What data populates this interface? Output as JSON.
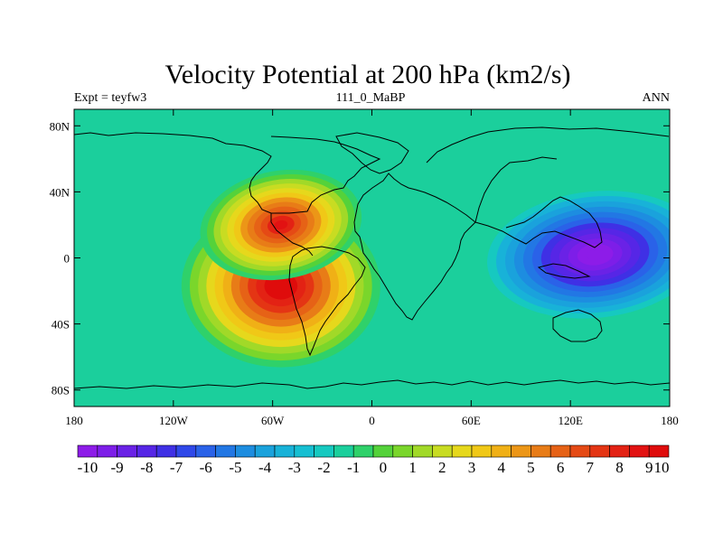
{
  "chart_data": {
    "type": "heatmap",
    "title": "Velocity Potential at 200 hPa (km2/s)",
    "left_string": "Expt = teyfw3",
    "center_string": "111_0_MaBP",
    "right_string": "ANN",
    "x_ticks": [
      "180",
      "120W",
      "60W",
      "0",
      "60E",
      "120E",
      "180"
    ],
    "y_ticks": [
      "80N",
      "40N",
      "0",
      "40S",
      "80S"
    ],
    "x_tick_lons": [
      -180,
      -120,
      -60,
      0,
      60,
      120,
      180
    ],
    "y_tick_lats": [
      80,
      40,
      0,
      -40,
      -80
    ],
    "xlim": [
      -180,
      180
    ],
    "ylim": [
      -90,
      90
    ],
    "colorbar_labels": [
      "-10",
      "-9",
      "-8",
      "-7",
      "-6",
      "-5",
      "-4",
      "-3",
      "-2",
      "-1",
      "0",
      "1",
      "2",
      "3",
      "4",
      "5",
      "6",
      "7",
      "8",
      "9",
      "10"
    ],
    "colorbar_levels": [
      -10,
      -9,
      -8,
      -7,
      -6,
      -5,
      -4,
      -3,
      -2,
      -1,
      0,
      1,
      2,
      3,
      4,
      5,
      6,
      7,
      8,
      9,
      10
    ],
    "colorbar_colors": [
      "#8d1ce8",
      "#7d1ee8",
      "#6a22e6",
      "#5626e6",
      "#3f30e5",
      "#2f48e9",
      "#2a62e8",
      "#2277e4",
      "#1d8de0",
      "#1aa2dc",
      "#18b2d8",
      "#16bfd2",
      "#16c9c0",
      "#1bcf9c",
      "#2fd16a",
      "#54d23a",
      "#7ad62b",
      "#a1d928",
      "#c8dc22",
      "#e6d81c",
      "#f0c817",
      "#f0b016",
      "#ec9617",
      "#e87c17",
      "#e66216",
      "#e54a15",
      "#e43514",
      "#e32214",
      "#e21212",
      "#df0c0c"
    ],
    "value_min": -10,
    "value_max": 10,
    "field_centers": [
      {
        "name": "pacific-minimum",
        "lon": 135,
        "lat": 2,
        "value": -10.6
      },
      {
        "name": "south-american-maximum",
        "lon": -55,
        "lat": -17,
        "value": 10.4
      },
      {
        "name": "north-american-maximum",
        "lon": -55,
        "lat": 20,
        "value": 9.0
      }
    ]
  }
}
